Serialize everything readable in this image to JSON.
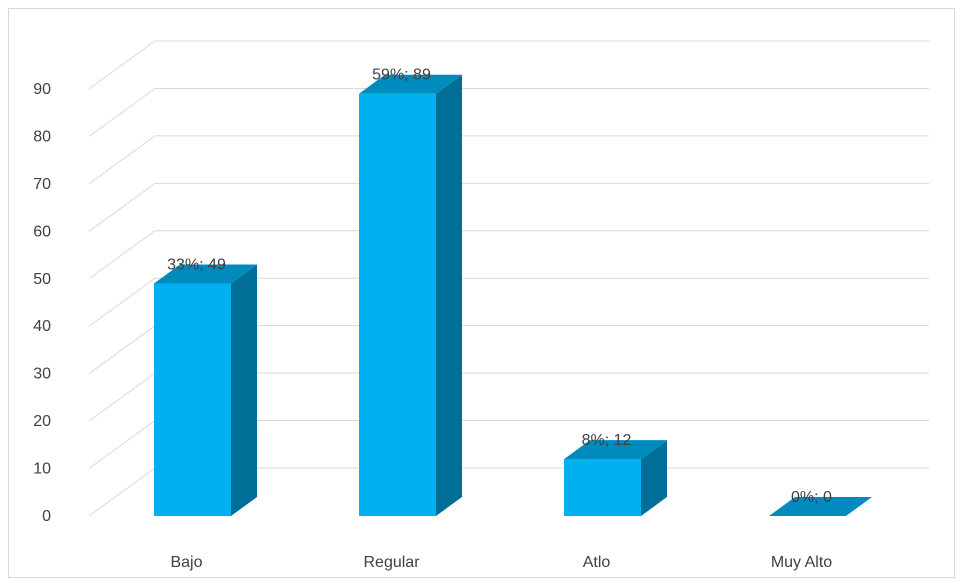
{
  "chart_data": {
    "type": "bar",
    "title": "",
    "xlabel": "",
    "ylabel": "",
    "categories": [
      "Bajo",
      "Regular",
      "Atlo",
      "Muy Alto"
    ],
    "values": [
      49,
      89,
      12,
      0
    ],
    "percent_labels": [
      "33%",
      "59%",
      "8%",
      "0%"
    ],
    "data_labels": [
      "33%; 49",
      "59%; 89",
      "8%; 12",
      "0%; 0"
    ],
    "ylim": [
      0,
      90
    ],
    "yticks": [
      "0",
      "10",
      "20",
      "30",
      "40",
      "50",
      "60",
      "70",
      "80",
      "90"
    ],
    "grid": true,
    "legend": "none",
    "style": "3d-column"
  },
  "colors": {
    "bar_front": "#00b0f0",
    "bar_side": "#006f97",
    "bar_top": "#008bbf",
    "grid": "#d9d9d9",
    "text": "#404040"
  }
}
